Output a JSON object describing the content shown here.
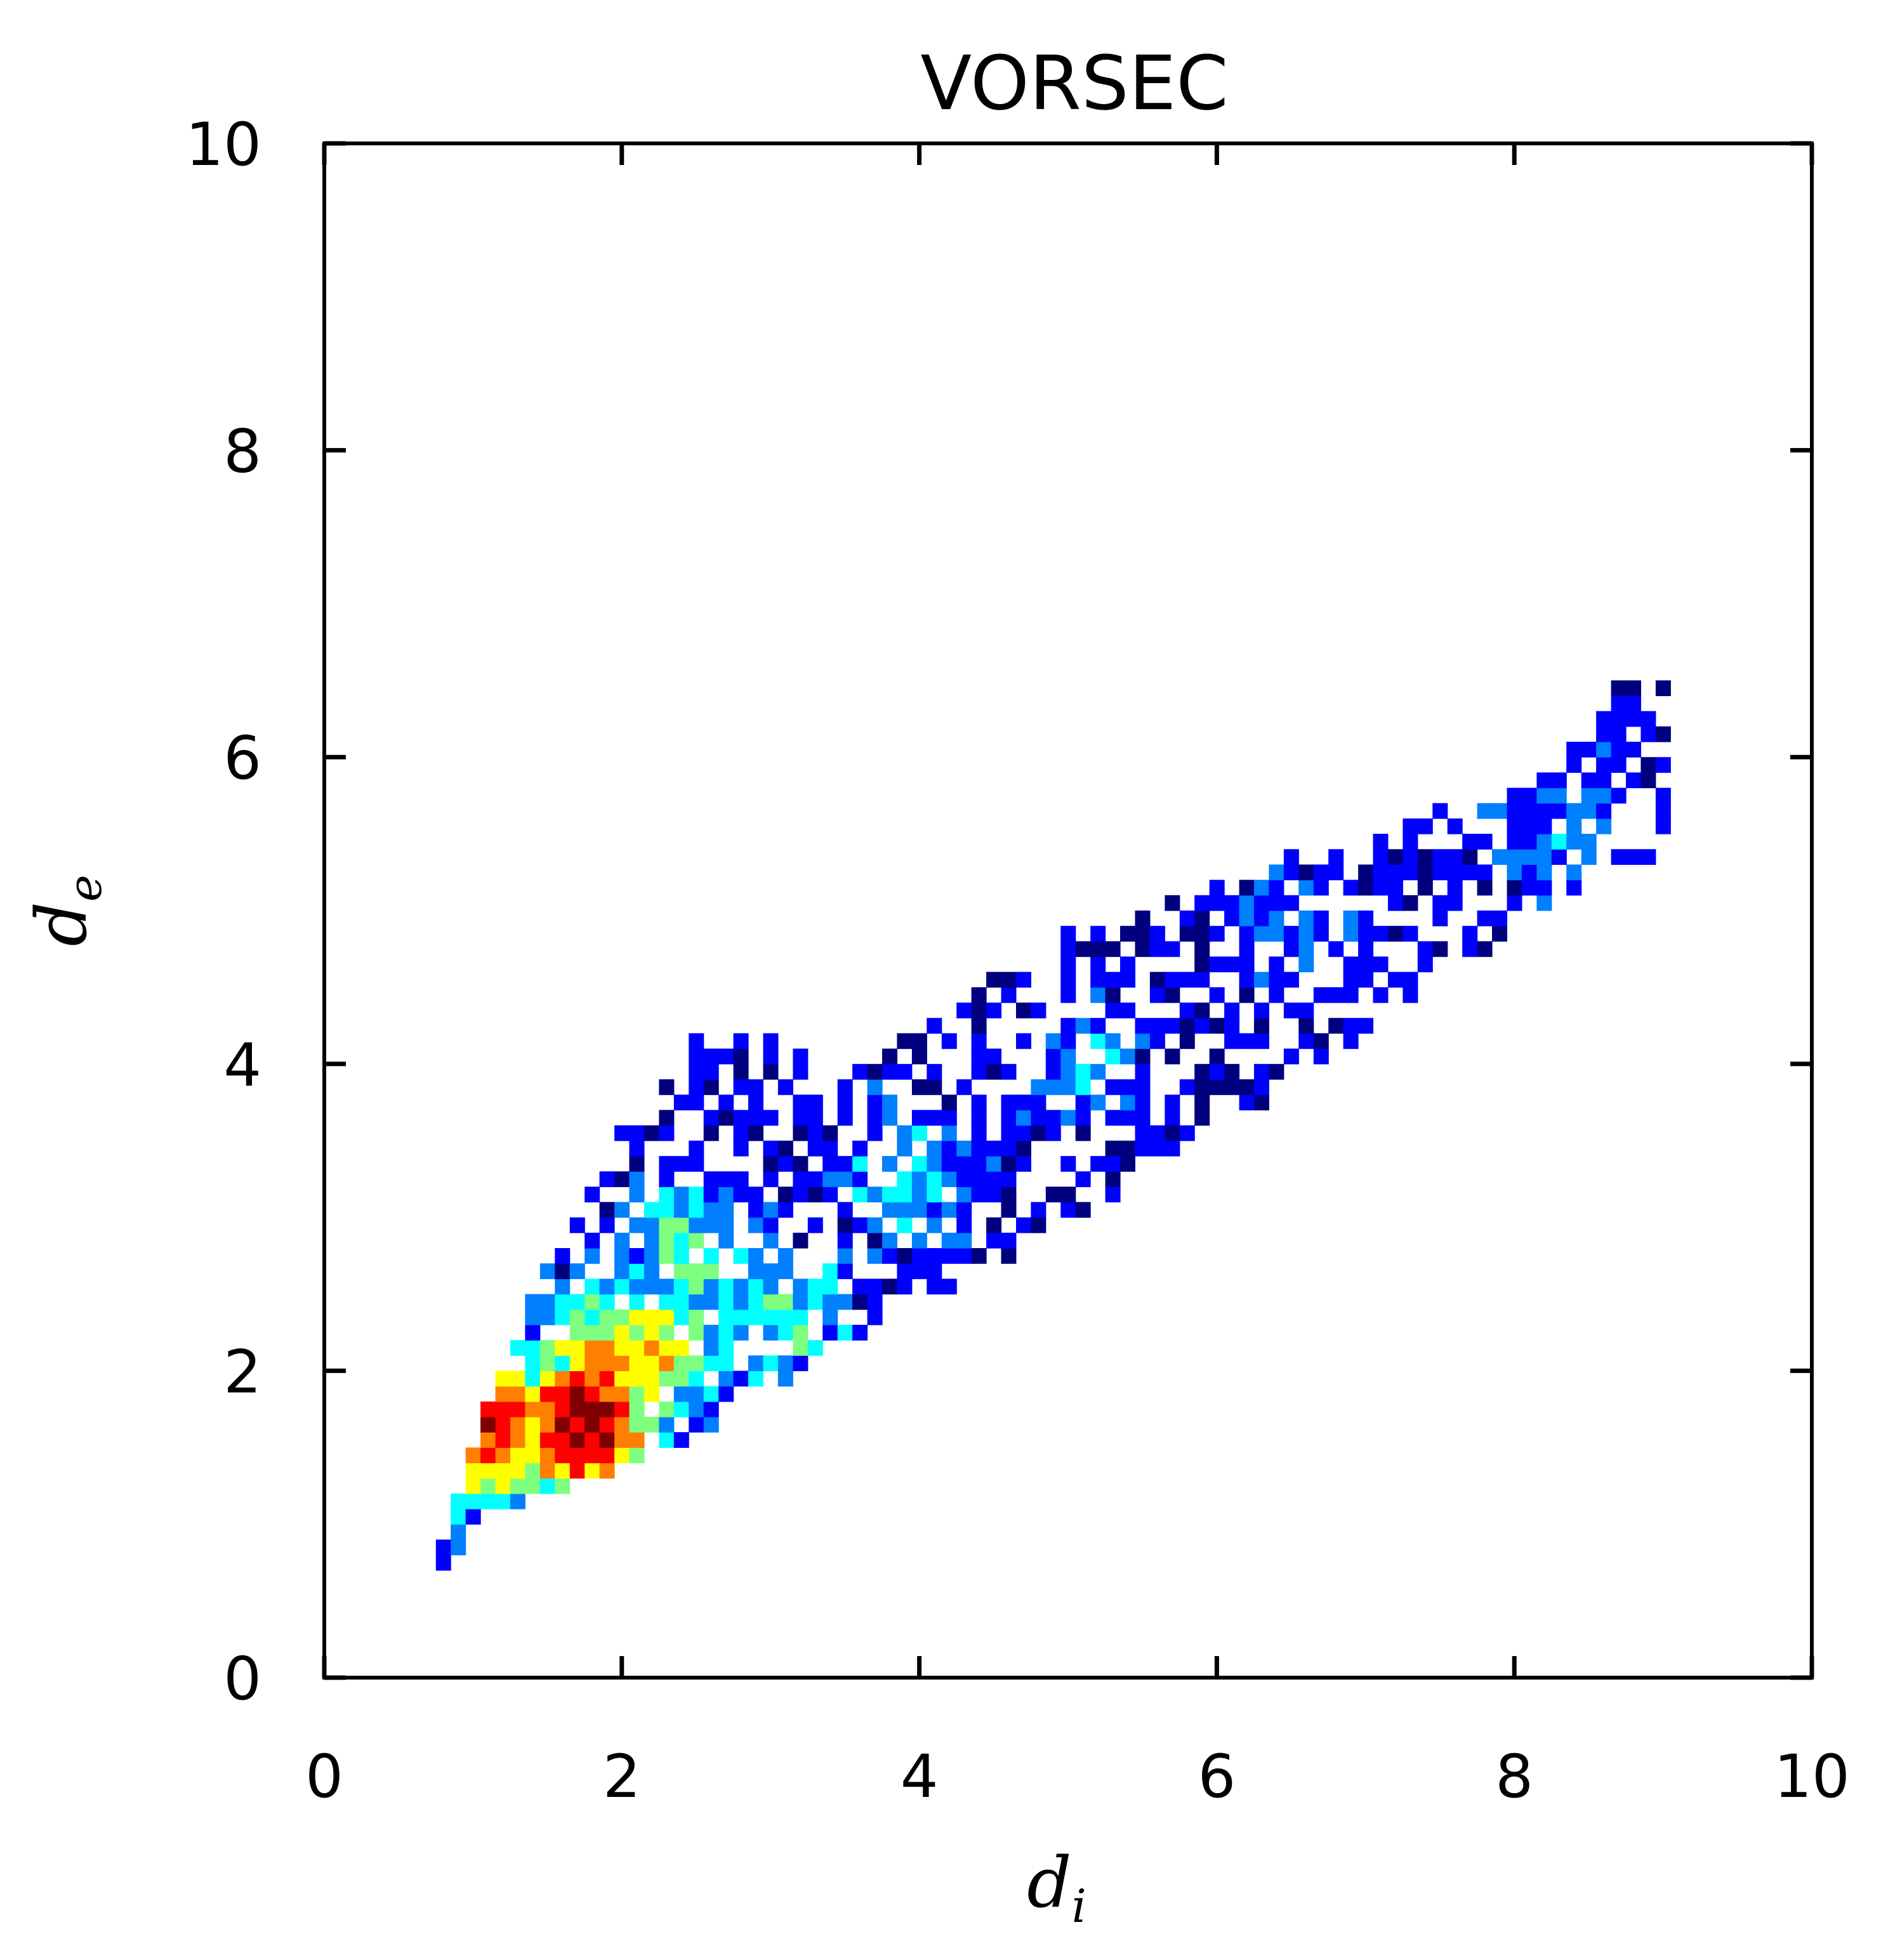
{
  "chart_data": {
    "type": "heatmap",
    "title": "VORSEC",
    "xlabel": {
      "base": "d",
      "sub": "i"
    },
    "ylabel": {
      "base": "d",
      "sub": "e"
    },
    "xlim": [
      0,
      10
    ],
    "ylim": [
      0,
      10
    ],
    "xticks": [
      "0",
      "2",
      "4",
      "6",
      "8",
      "10"
    ],
    "yticks": [
      "0",
      "2",
      "4",
      "6",
      "8",
      "10"
    ],
    "grid": false,
    "colormap": "jet",
    "colormap_colors": [
      "#00007f",
      "#0000ff",
      "#007fff",
      "#00ffff",
      "#7fff7f",
      "#ffff00",
      "#ff7f00",
      "#ff0000",
      "#7f0000"
    ],
    "bin_size": 0.1,
    "density_regions": [
      {
        "x": 1.0,
        "y": 1.6,
        "intensity": 0.95
      },
      {
        "x": 1.7,
        "y": 1.6,
        "intensity": 1.0
      },
      {
        "x": 1.9,
        "y": 2.0,
        "intensity": 0.75
      },
      {
        "x": 2.2,
        "y": 2.1,
        "intensity": 0.6
      },
      {
        "x": 2.4,
        "y": 2.7,
        "intensity": 0.45
      },
      {
        "x": 3.0,
        "y": 2.3,
        "intensity": 0.4
      },
      {
        "x": 3.8,
        "y": 3.2,
        "intensity": 0.3
      },
      {
        "x": 5.0,
        "y": 4.0,
        "intensity": 0.25
      },
      {
        "x": 6.5,
        "y": 4.8,
        "intensity": 0.2
      },
      {
        "x": 8.2,
        "y": 5.5,
        "intensity": 0.22
      }
    ],
    "envelope": {
      "lower": [
        [
          0.75,
          0.65
        ],
        [
          1.0,
          1.05
        ],
        [
          1.5,
          1.2
        ],
        [
          2.5,
          1.6
        ],
        [
          3.5,
          2.2
        ],
        [
          4.5,
          2.7
        ],
        [
          5.5,
          3.3
        ],
        [
          6.5,
          3.9
        ],
        [
          7.5,
          4.6
        ],
        [
          8.5,
          5.2
        ],
        [
          8.9,
          5.35
        ]
      ],
      "upper": [
        [
          0.75,
          0.85
        ],
        [
          1.0,
          1.6
        ],
        [
          1.5,
          2.7
        ],
        [
          2.0,
          3.6
        ],
        [
          2.4,
          4.1
        ],
        [
          2.9,
          4.1
        ],
        [
          3.5,
          3.9
        ],
        [
          4.3,
          4.4
        ],
        [
          5.0,
          4.8
        ],
        [
          6.0,
          5.1
        ],
        [
          7.0,
          5.5
        ],
        [
          8.0,
          5.7
        ],
        [
          8.6,
          6.4
        ],
        [
          8.9,
          6.5
        ]
      ]
    }
  }
}
